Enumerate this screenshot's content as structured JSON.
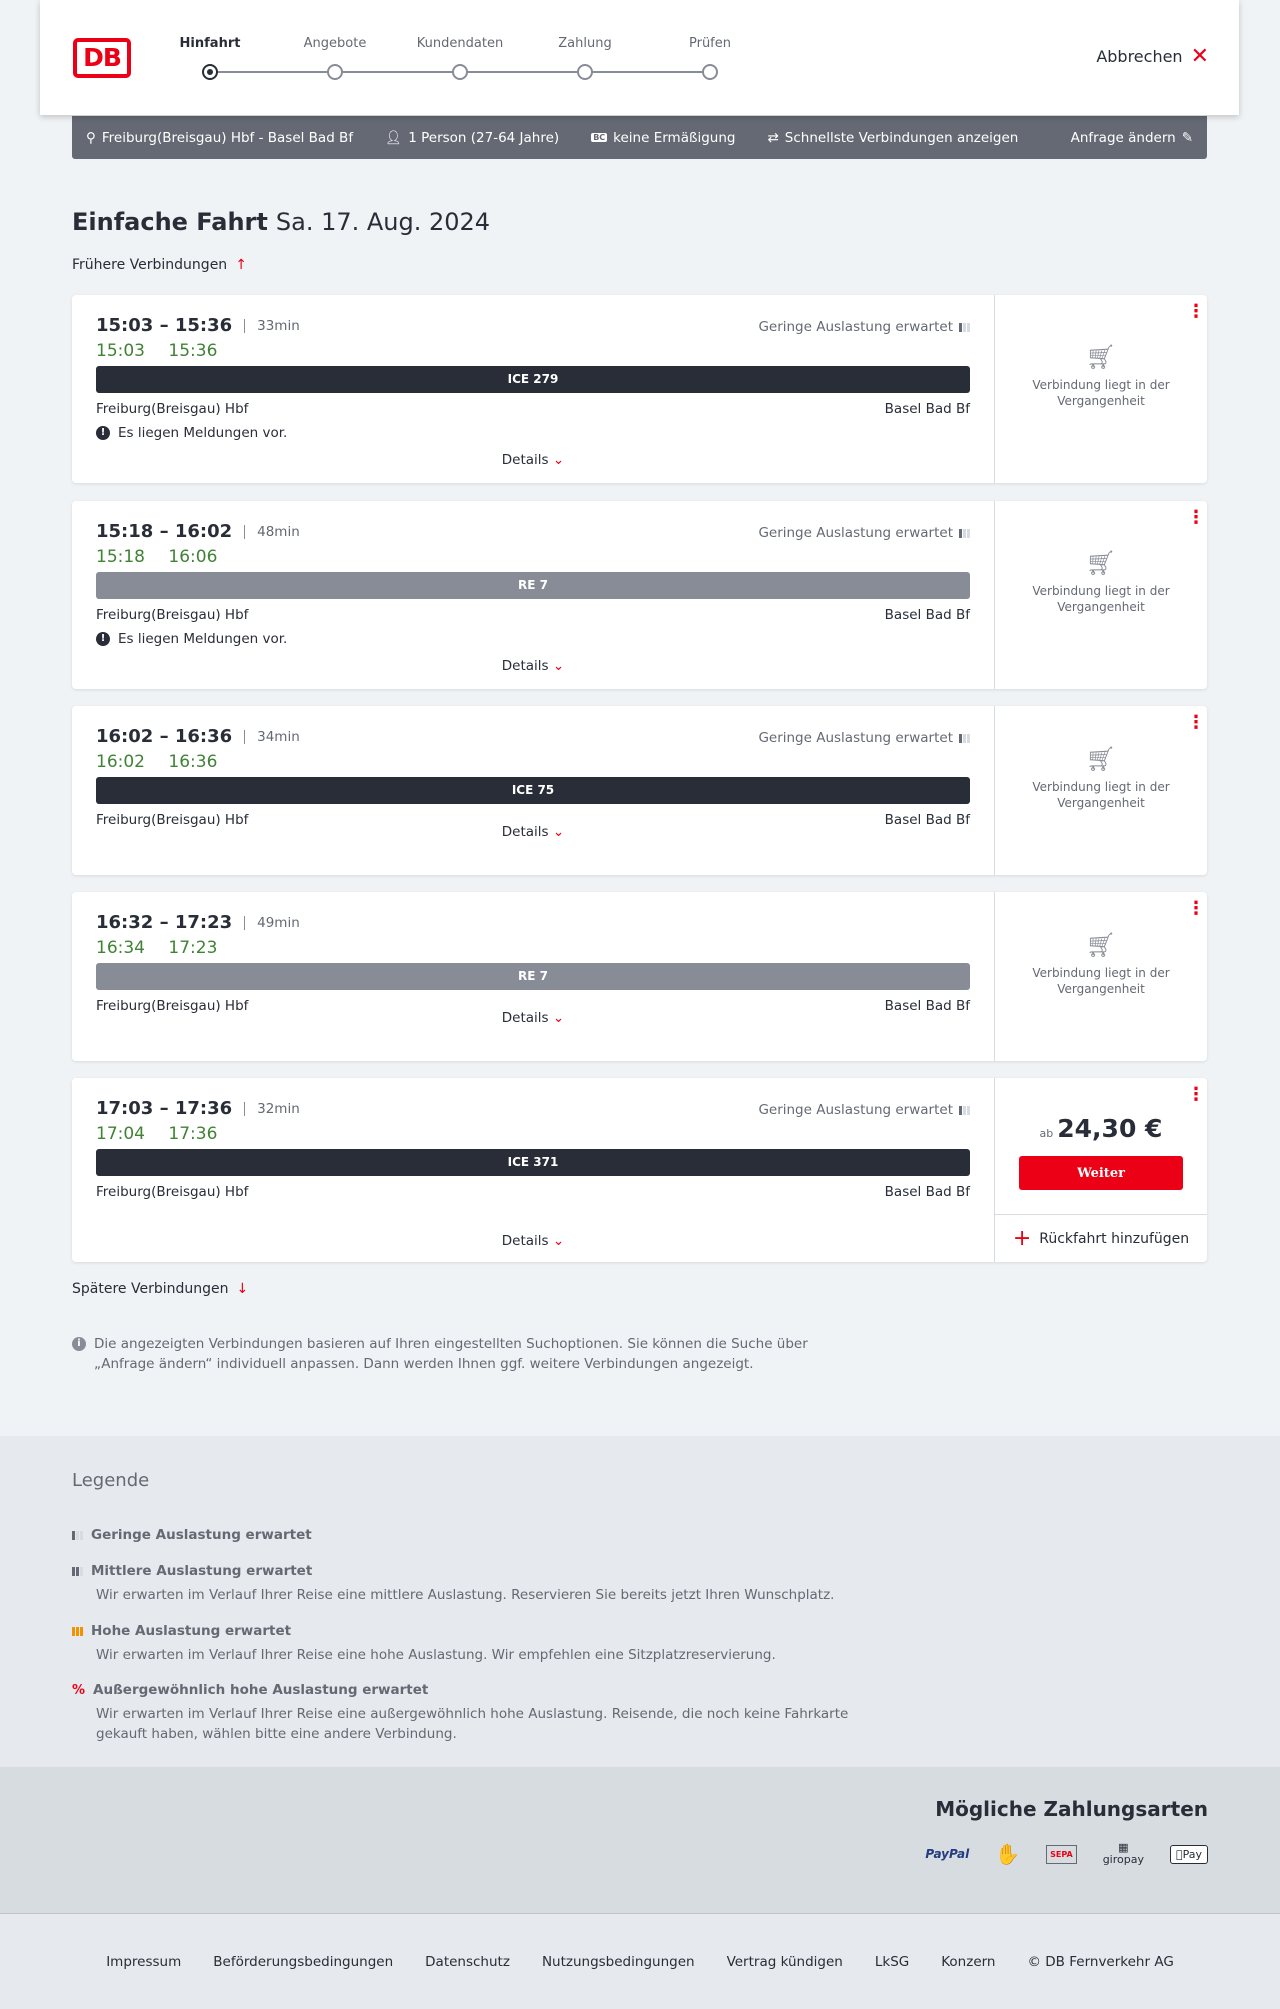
{
  "header": {
    "logo": "DB",
    "steps": [
      "Hinfahrt",
      "Angebote",
      "Kundendaten",
      "Zahlung",
      "Prüfen"
    ],
    "active_step": 0,
    "cancel": "Abbrechen"
  },
  "summary": {
    "route": "Freiburg(Breisgau) Hbf - Basel Bad Bf",
    "passengers": "1 Person (27-64 Jahre)",
    "bc_badge": "BC",
    "discount": "keine Ermäßigung",
    "fastest": "Schnellste Verbindungen anzeigen",
    "edit": "Anfrage ändern"
  },
  "page": {
    "title": "Einfache Fahrt",
    "date": "Sa. 17. Aug. 2024",
    "earlier": "Frühere Verbindungen",
    "later": "Spätere Verbindungen",
    "details": "Details",
    "past_text": "Verbindung liegt in der Vergangenheit",
    "info": "Die angezeigten Verbindungen basieren auf Ihren eingestellten Suchoptionen. Sie können die Suche über „Anfrage ändern“ individuell anpassen. Dann werden Ihnen ggf. weitere Verbindungen angezeigt."
  },
  "connections": [
    {
      "times": "15:03 – 15:36",
      "duration": "33min",
      "realtime": "15:03 15:36",
      "load": "Geringe Auslastung erwartet",
      "train": "ICE 279",
      "train_color": "#282d37",
      "from": "Freiburg(Breisgau) Hbf",
      "to": "Basel Bad Bf",
      "message": "Es liegen Meldungen vor."
    },
    {
      "times": "15:18 – 16:02",
      "duration": "48min",
      "realtime": "15:18 16:06",
      "load": "Geringe Auslastung erwartet",
      "train": "RE 7",
      "train_color": "#878c96",
      "from": "Freiburg(Breisgau) Hbf",
      "to": "Basel Bad Bf",
      "message": "Es liegen Meldungen vor."
    },
    {
      "times": "16:02 – 16:36",
      "duration": "34min",
      "realtime": "16:02 16:36",
      "load": "Geringe Auslastung erwartet",
      "train": "ICE 75",
      "train_color": "#282d37",
      "from": "Freiburg(Breisgau) Hbf",
      "to": "Basel Bad Bf"
    },
    {
      "times": "16:32 – 17:23",
      "duration": "49min",
      "realtime": "16:34 17:23",
      "train": "RE 7",
      "train_color": "#878c96",
      "from": "Freiburg(Breisgau) Hbf",
      "to": "Basel Bad Bf"
    },
    {
      "times": "17:03 – 17:36",
      "duration": "32min",
      "realtime": "17:04 17:36",
      "load": "Geringe Auslastung erwartet",
      "train": "ICE 371",
      "train_color": "#282d37",
      "from": "Freiburg(Breisgau) Hbf",
      "to": "Basel Bad Bf",
      "price_prefix": "ab",
      "price": "24,30 €",
      "button": "Weiter",
      "return": "Rückfahrt hinzufügen"
    }
  ],
  "legend": {
    "title": "Legende",
    "items": [
      {
        "label": "Geringe Auslastung erwartet",
        "color": "#646973"
      },
      {
        "label": "Mittlere Auslastung erwartet",
        "text": "Wir erwarten im Verlauf Ihrer Reise eine mittlere Auslastung. Reservieren Sie bereits jetzt Ihren Wunschplatz.",
        "color": "#646973"
      },
      {
        "label": "Hohe Auslastung erwartet",
        "text": "Wir erwarten im Verlauf Ihrer Reise eine hohe Auslastung. Wir empfehlen eine Sitzplatzreservierung.",
        "color": "#f39200"
      },
      {
        "label": "Außergewöhnlich hohe Auslastung erwartet",
        "text": "Wir erwarten im Verlauf Ihrer Reise eine außergewöhnlich hohe Auslastung. Reisende, die noch keine Fahrkarte gekauft haben, wählen bitte eine andere Verbindung.",
        "color": "#ec0016"
      }
    ]
  },
  "payments": {
    "title": "Mögliche Zahlungsarten",
    "methods": [
      "PayPal",
      "Kreditkarte",
      "SEPA",
      "giropay",
      "Pay"
    ]
  },
  "footer": [
    "Impressum",
    "Beförderungsbedingungen",
    "Datenschutz",
    "Nutzungsbedingungen",
    "Vertrag kündigen",
    "LkSG",
    "Konzern",
    "© DB Fernverkehr AG"
  ]
}
